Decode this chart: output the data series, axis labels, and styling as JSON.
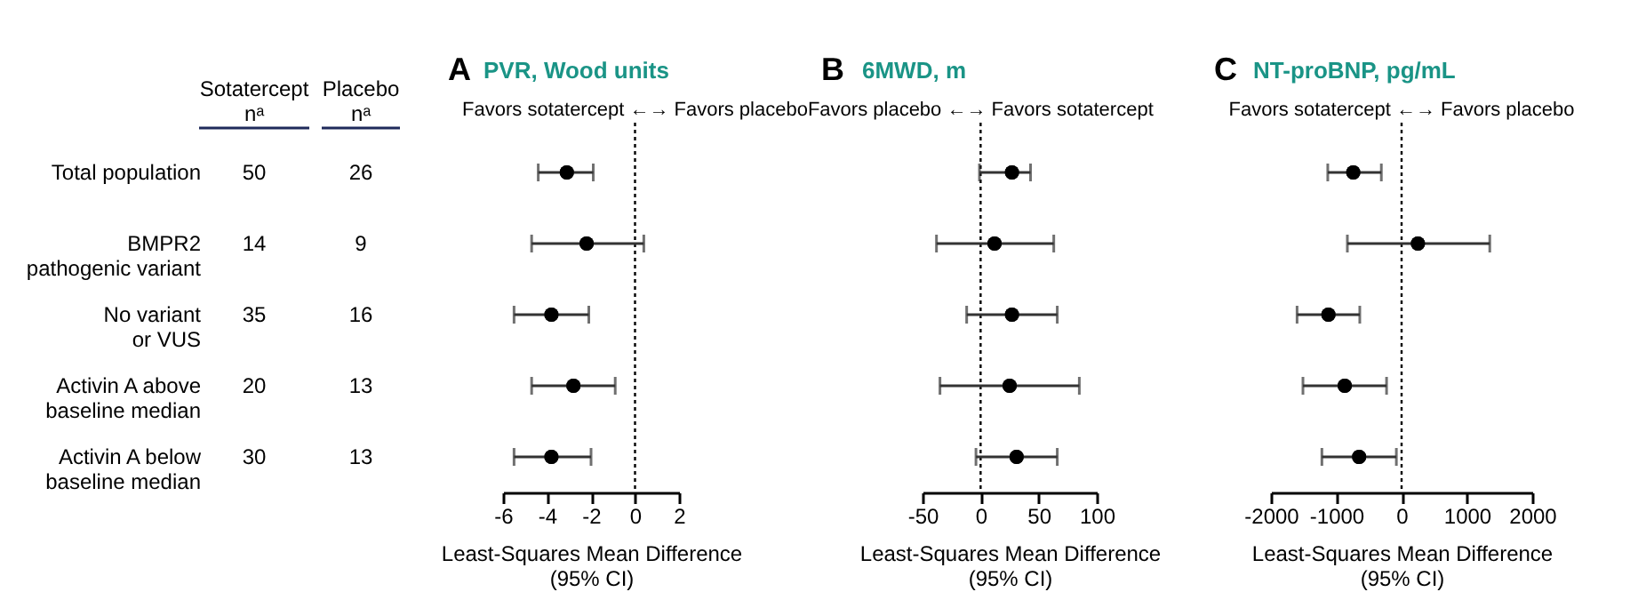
{
  "chart_data": [
    {
      "type": "other",
      "categories": [
        "Total population",
        "BMPR2\npathogenic variant",
        "No variant\nor VUS",
        "Activin A above\nbaseline median",
        "Activin A below\nbaseline median"
      ],
      "series": [
        {
          "name": "Sotatercept\nnᵃ",
          "values": [
            50,
            14,
            35,
            20,
            30
          ]
        },
        {
          "name": "Placebo\nnᵃ",
          "values": [
            26,
            9,
            16,
            13,
            13
          ]
        }
      ],
      "data_labels": true
    },
    {
      "type": "scatter",
      "orientation": "horizontal",
      "title": "PVR, Wood units",
      "subtitle": "Favors sotatercept ←→ Favors placebo",
      "annotations": [
        "A"
      ],
      "categories": [
        null,
        null,
        null,
        null,
        null
      ],
      "tick_labels": "x",
      "color": "#000000",
      "marker": "circle",
      "values": [
        -3.1,
        -2.2,
        -3.8,
        -2.8,
        -3.8
      ],
      "errors": [
        [
          -4.4,
          -1.9
        ],
        [
          -4.7,
          0.4
        ],
        [
          -5.5,
          -2.1
        ],
        [
          -4.7,
          -0.9
        ],
        [
          -5.5,
          -2.0
        ]
      ],
      "xlabel": "Least-Squares Mean Difference\n(95% CI)",
      "xlim": [
        -6,
        2
      ],
      "xticks": [
        -6,
        -4,
        -2,
        0,
        2
      ],
      "ref_lines": [
        {
          "axis": "x",
          "value": 0,
          "line_style": "dotted"
        }
      ]
    },
    {
      "type": "scatter",
      "orientation": "horizontal",
      "title": "6MWD, m",
      "subtitle": "Favors placebo ←→ Favors sotatercept",
      "annotations": [
        "B"
      ],
      "categories": [
        null,
        null,
        null,
        null,
        null
      ],
      "tick_labels": "x",
      "color": "#000000",
      "marker": "circle",
      "values": [
        27,
        12,
        27,
        25,
        31
      ],
      "errors": [
        [
          -1,
          43
        ],
        [
          -38,
          63
        ],
        [
          -12,
          66
        ],
        [
          -35,
          85
        ],
        [
          -4,
          66
        ]
      ],
      "xlabel": "Least-Squares Mean Difference\n(95% CI)",
      "xlim": [
        -50,
        100
      ],
      "xticks": [
        -50,
        0,
        50,
        100
      ],
      "ref_lines": [
        {
          "axis": "x",
          "value": 0,
          "line_style": "dotted"
        }
      ]
    },
    {
      "type": "scatter",
      "orientation": "horizontal",
      "title": "NT-proBNP, pg/mL",
      "subtitle": "Favors sotatercept ←→ Favors placebo",
      "annotations": [
        "C"
      ],
      "categories": [
        null,
        null,
        null,
        null,
        null
      ],
      "tick_labels": "x",
      "color": "#000000",
      "marker": "circle",
      "values": [
        -740,
        250,
        -1120,
        -870,
        -650
      ],
      "errors": [
        [
          -1130,
          -310
        ],
        [
          -830,
          1350
        ],
        [
          -1600,
          -640
        ],
        [
          -1510,
          -230
        ],
        [
          -1220,
          -80
        ]
      ],
      "xlabel": "Least-Squares Mean Difference\n(95% CI)",
      "xlim": [
        -2000,
        2000
      ],
      "xticks": [
        -2000,
        -1000,
        0,
        1000,
        2000
      ],
      "ref_lines": [
        {
          "axis": "x",
          "value": 0,
          "line_style": "dotted"
        }
      ]
    }
  ]
}
